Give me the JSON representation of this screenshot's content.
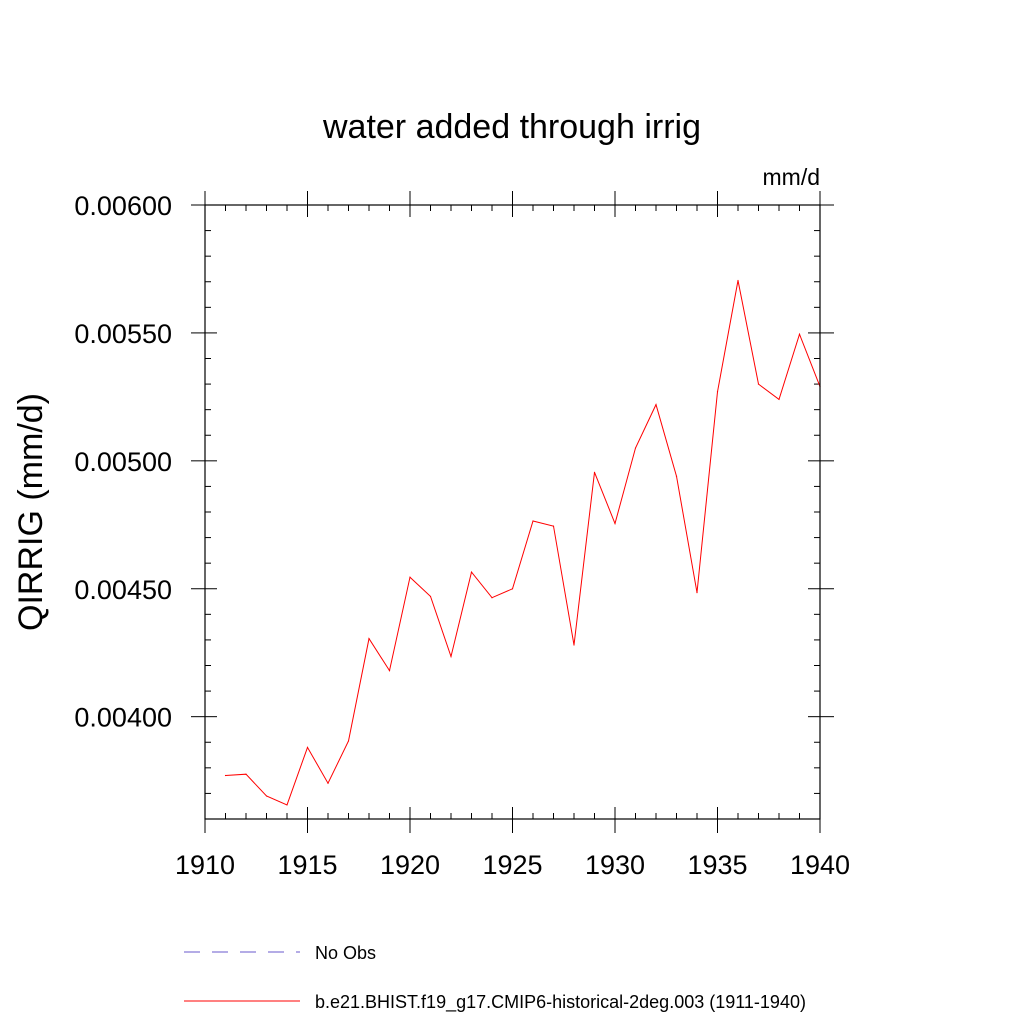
{
  "chart_data": {
    "type": "line",
    "title": "water added through irrig",
    "units_label": "mm/d",
    "ylabel": "QIRRIG  (mm/d)",
    "xlabel": "",
    "xlim": [
      1910,
      1940
    ],
    "ylim": [
      0.0036,
      0.006
    ],
    "x_ticks": [
      1910,
      1915,
      1920,
      1925,
      1930,
      1935,
      1940
    ],
    "x_tick_labels": [
      "1910",
      "1915",
      "1920",
      "1925",
      "1930",
      "1935",
      "1940"
    ],
    "y_ticks": [
      0.004,
      0.0045,
      0.005,
      0.0055,
      0.006
    ],
    "y_tick_labels": [
      "0.00400",
      "0.00450",
      "0.00500",
      "0.00550",
      "0.00600"
    ],
    "grid": false,
    "legend_position": "bottom",
    "series": [
      {
        "name": "No Obs",
        "color": "#6a5acd",
        "style": "dashed",
        "x": [],
        "y": []
      },
      {
        "name": "b.e21.BHIST.f19_g17.CMIP6-historical-2deg.003 (1911-1940)",
        "color": "#ff0000",
        "style": "solid",
        "x": [
          1911,
          1912,
          1913,
          1914,
          1915,
          1916,
          1917,
          1918,
          1919,
          1920,
          1921,
          1922,
          1923,
          1924,
          1925,
          1926,
          1927,
          1928,
          1929,
          1930,
          1931,
          1932,
          1933,
          1934,
          1935,
          1936,
          1937,
          1938,
          1939,
          1940
        ],
        "y": [
          0.00377,
          0.003775,
          0.00369,
          0.003655,
          0.00388,
          0.00374,
          0.003905,
          0.004305,
          0.00418,
          0.004545,
          0.00447,
          0.004235,
          0.004565,
          0.004465,
          0.0045,
          0.004765,
          0.004745,
          0.00428,
          0.004955,
          0.004755,
          0.00505,
          0.00522,
          0.00494,
          0.004485,
          0.00527,
          0.005705,
          0.0053,
          0.00524,
          0.005495,
          0.00529
        ]
      }
    ]
  }
}
